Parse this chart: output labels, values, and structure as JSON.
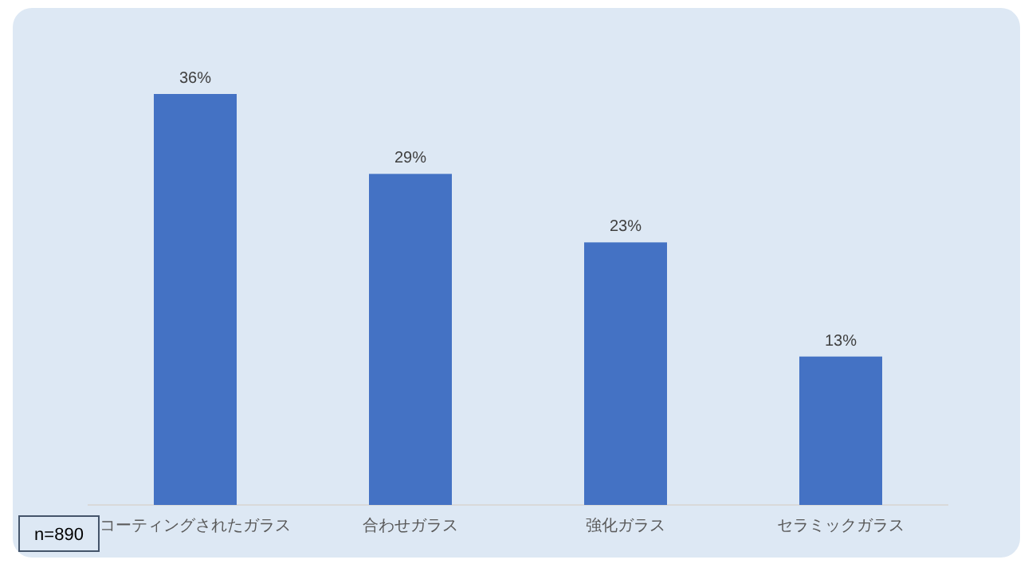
{
  "chart_data": {
    "type": "bar",
    "categories": [
      "コーティングされたガラス",
      "合わせガラス",
      "強化ガラス",
      "セラミックガラス"
    ],
    "values": [
      36,
      29,
      23,
      13
    ],
    "value_labels": [
      "36%",
      "29%",
      "23%",
      "13%"
    ],
    "color": "#4472c4",
    "annotations": [
      "n=890"
    ]
  }
}
